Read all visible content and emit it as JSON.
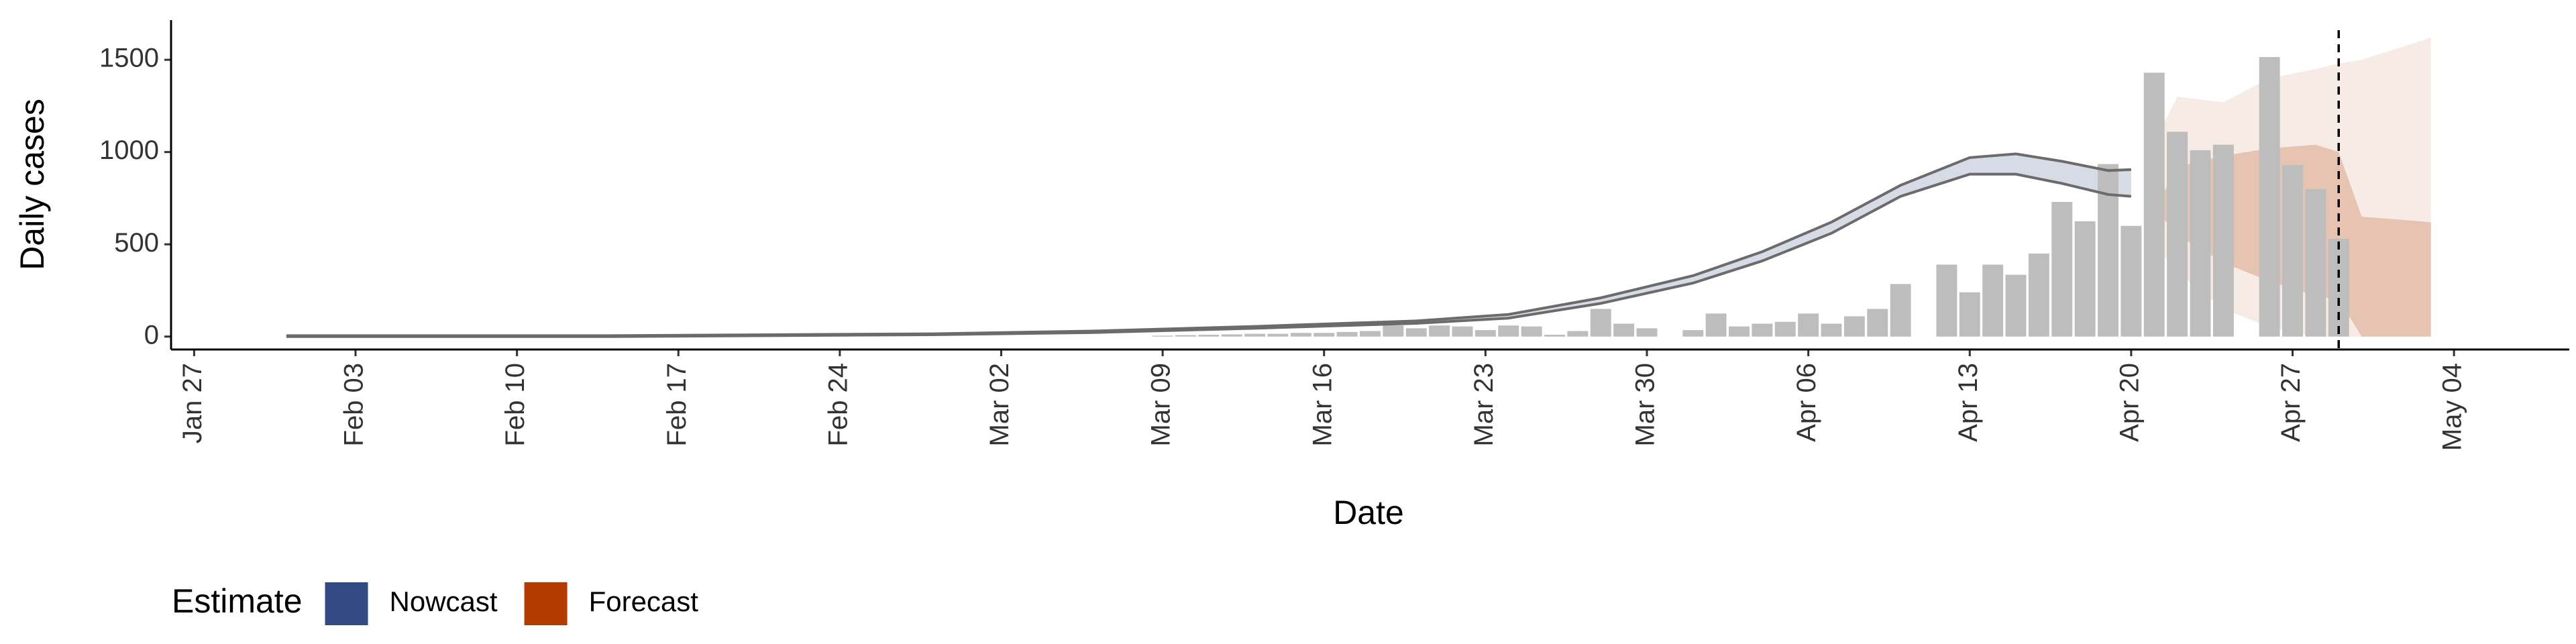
{
  "chart_data": {
    "type": "bar",
    "y_label": "Daily cases",
    "x_label": "Date",
    "legend_title": "Estimate",
    "ylim": [
      -70,
      1715
    ],
    "yticks": [
      0,
      500,
      1000,
      1500
    ],
    "xlim": [
      "Jan 26",
      "May 09"
    ],
    "xticks": [
      "Jan 27",
      "Feb 03",
      "Feb 10",
      "Feb 17",
      "Feb 24",
      "Mar 02",
      "Mar 09",
      "Mar 16",
      "Mar 23",
      "Mar 30",
      "Apr 06",
      "Apr 13",
      "Apr 20",
      "Apr 27",
      "May 04"
    ],
    "vline_x": "Apr 29",
    "bars": {
      "color": "#bdbdbd",
      "x": [
        "Mar 09",
        "Mar 10",
        "Mar 11",
        "Mar 12",
        "Mar 13",
        "Mar 14",
        "Mar 15",
        "Mar 16",
        "Mar 17",
        "Mar 18",
        "Mar 19",
        "Mar 20",
        "Mar 21",
        "Mar 22",
        "Mar 23",
        "Mar 24",
        "Mar 25",
        "Mar 26",
        "Mar 27",
        "Mar 28",
        "Mar 29",
        "Mar 30",
        "Mar 31",
        "Apr 01",
        "Apr 02",
        "Apr 03",
        "Apr 04",
        "Apr 05",
        "Apr 06",
        "Apr 07",
        "Apr 08",
        "Apr 09",
        "Apr 10",
        "Apr 11",
        "Apr 12",
        "Apr 13",
        "Apr 14",
        "Apr 15",
        "Apr 16",
        "Apr 17",
        "Apr 18",
        "Apr 19",
        "Apr 20",
        "Apr 21",
        "Apr 22",
        "Apr 23",
        "Apr 24",
        "Apr 25",
        "Apr 26",
        "Apr 27",
        "Apr 28",
        "Apr 29"
      ],
      "values": [
        5,
        8,
        10,
        12,
        15,
        15,
        20,
        20,
        25,
        30,
        60,
        45,
        60,
        55,
        35,
        60,
        55,
        10,
        30,
        150,
        70,
        45,
        0,
        35,
        125,
        55,
        70,
        80,
        125,
        70,
        110,
        150,
        285,
        0,
        390,
        240,
        390,
        335,
        450,
        730,
        625,
        935,
        600,
        1430,
        1110,
        1010,
        1040,
        0,
        1515,
        930,
        800,
        530
      ]
    },
    "series": [
      {
        "name": "Nowcast",
        "color": "#324b84",
        "outline_color": "#6b6b6b",
        "x": [
          "Jan 31",
          "Feb 14",
          "Feb 28",
          "Mar 06",
          "Mar 13",
          "Mar 20",
          "Mar 24",
          "Mar 28",
          "Apr 01",
          "Apr 04",
          "Apr 07",
          "Apr 10",
          "Apr 13",
          "Apr 15",
          "Apr 17",
          "Apr 19",
          "Apr 20"
        ],
        "upper": [
          5,
          5,
          15,
          30,
          55,
          85,
          120,
          210,
          330,
          460,
          620,
          820,
          970,
          990,
          950,
          900,
          905
        ],
        "lower": [
          0,
          0,
          10,
          22,
          45,
          72,
          100,
          180,
          290,
          410,
          560,
          760,
          880,
          880,
          830,
          770,
          760
        ]
      },
      {
        "name": "Forecast",
        "color": "#b33b00",
        "x": [
          "Apr 21",
          "Apr 22",
          "Apr 24",
          "Apr 26",
          "Apr 28",
          "Apr 29",
          "Apr 30",
          "May 03"
        ],
        "upper": [
          1050,
          1300,
          1270,
          1400,
          1450,
          1480,
          1500,
          1620
        ],
        "lower": [
          500,
          350,
          150,
          50,
          0,
          0,
          0,
          0
        ],
        "inner_upper": [
          680,
          920,
          980,
          1020,
          1040,
          1000,
          650,
          620
        ],
        "inner_lower": [
          700,
          550,
          400,
          300,
          220,
          200,
          0,
          0
        ]
      }
    ]
  }
}
